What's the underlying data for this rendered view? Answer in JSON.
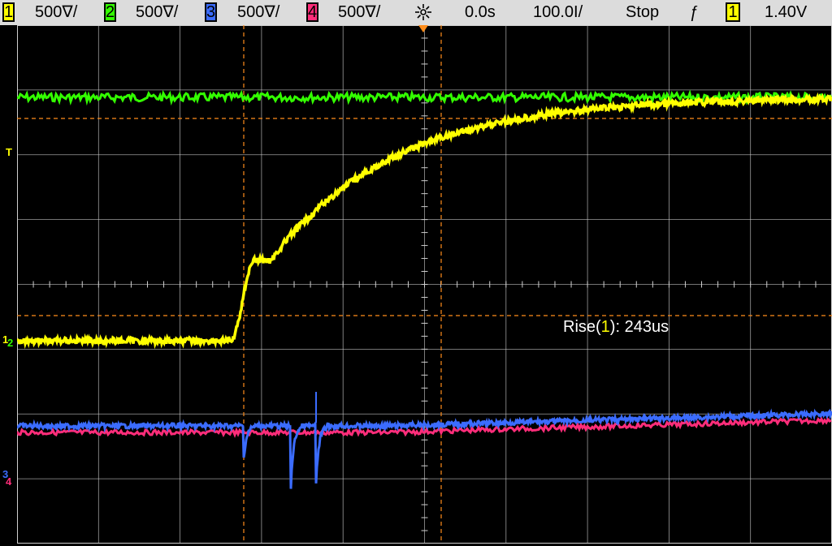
{
  "toolbar": {
    "channels": [
      {
        "num": "1",
        "scale": "500∇/",
        "color": "#ffff00"
      },
      {
        "num": "2",
        "scale": "500∇/",
        "color": "#33ff00"
      },
      {
        "num": "3",
        "scale": "500∇/",
        "color": "#3b6cff"
      },
      {
        "num": "4",
        "scale": "500∇/",
        "color": "#ff2d7a"
      }
    ],
    "time_offset": "0.0s",
    "time_scale": "100.0Ι/",
    "run_state": "Stop",
    "trigger_slope_glyph": "ƒ",
    "trigger_channel": "1",
    "trigger_level": "1.40V"
  },
  "measurement": {
    "label_prefix": "Rise(",
    "channel": "1",
    "label_suffix": "): 243us"
  },
  "markers": {
    "trigger": "T",
    "ch1": "1",
    "ch2": "2",
    "ch3": "3",
    "ch4": "4"
  },
  "colors": {
    "ch1": "#ffff00",
    "ch2": "#33ff00",
    "ch3": "#3b6cff",
    "ch4": "#ff2d7a",
    "cursor": "#ff8c1a",
    "grid": "#d0d0d0",
    "toolbar_bg": "#dcdcdc"
  },
  "icons": {
    "trigger_settings": "sun-snowflake-icon",
    "trigger_slope": "rising-edge-icon"
  }
}
